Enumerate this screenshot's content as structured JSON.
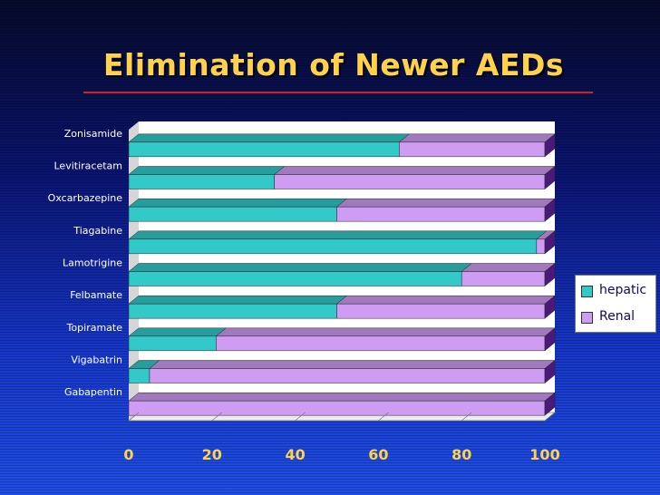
{
  "slide": {
    "title": "Elimination of Newer AEDs"
  },
  "chart_data": {
    "type": "bar",
    "orientation": "horizontal",
    "stacked": true,
    "stacked_percent": true,
    "style": "3d",
    "categories": [
      "Zonisamide",
      "Levitiracetam",
      "Oxcarbazepine",
      "Tiagabine",
      "Lamotrigine",
      "Felbamate",
      "Topiramate",
      "Vigabatrin",
      "Gabapentin"
    ],
    "series": [
      {
        "name": "hepatic",
        "values": [
          65,
          35,
          50,
          98,
          80,
          50,
          21,
          5,
          0
        ],
        "color": "#33c9c9"
      },
      {
        "name": "Renal",
        "values": [
          35,
          65,
          50,
          2,
          20,
          50,
          79,
          95,
          100
        ],
        "color": "#cf9cf4"
      }
    ],
    "xlim": [
      0,
      100
    ],
    "xticks": [
      0,
      20,
      40,
      60,
      80,
      100
    ],
    "title": "",
    "xlabel": "",
    "ylabel": "",
    "grid": false,
    "legend_position": "right",
    "plot_background": "#ffffff"
  }
}
